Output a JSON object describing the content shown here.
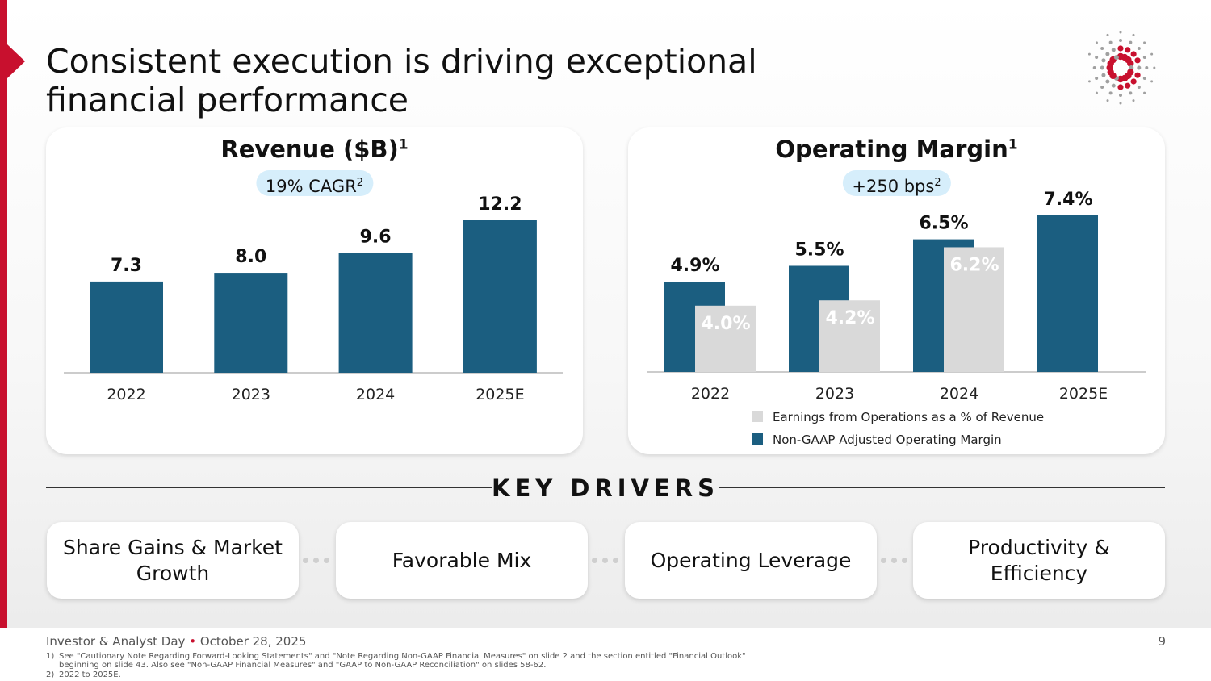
{
  "title": "Consistent execution is driving exceptional financial performance",
  "title_line1": "Consistent execution is driving exceptional",
  "title_line2": "financial performance",
  "colors": {
    "accent_red": "#c8102e",
    "bar_blue": "#1b5e80",
    "bar_gray": "#d9d9d9",
    "pill": "#d6eefb"
  },
  "logo": "red-gray-dot-burst-logo",
  "chart_data": [
    {
      "type": "bar",
      "title": "Revenue ($B)",
      "title_sup": "1",
      "badge": "19% CAGR",
      "badge_sup": "2",
      "categories": [
        "2022",
        "2023",
        "2024",
        "2025E"
      ],
      "values": [
        7.3,
        8.0,
        9.6,
        12.2
      ],
      "labels": [
        "7.3",
        "8.0",
        "9.6",
        "12.2"
      ],
      "ylim": [
        0,
        12.2
      ],
      "grid": false
    },
    {
      "type": "bar",
      "title": "Operating Margin",
      "title_sup": "1",
      "badge": "+250 bps",
      "badge_sup": "2",
      "categories": [
        "2022",
        "2023",
        "2024",
        "2025E"
      ],
      "ylim": [
        1.5,
        7.4
      ],
      "grid": false,
      "legend_placement": "bottom",
      "series": [
        {
          "name": "Non-GAAP Adjusted Operating Margin",
          "values": [
            4.9,
            5.5,
            6.5,
            7.4
          ],
          "labels": [
            "4.9%",
            "5.5%",
            "6.5%",
            "7.4%"
          ],
          "color": "#1b5e80"
        },
        {
          "name": "Earnings from Operations as a % of Revenue",
          "values": [
            4.0,
            4.2,
            6.2,
            null
          ],
          "labels": [
            "4.0%",
            "4.2%",
            "6.2%",
            ""
          ],
          "color": "#d9d9d9"
        }
      ]
    }
  ],
  "key_drivers": {
    "heading": "KEY DRIVERS",
    "items": [
      "Share Gains & Market Growth",
      "Favorable Mix",
      "Operating Leverage",
      "Productivity & Efficiency"
    ]
  },
  "footer": {
    "event": "Investor & Analyst Day",
    "bullet": "•",
    "date": "October 28, 2025",
    "page": "9",
    "notes": [
      {
        "num": "1)",
        "line1": "See \"Cautionary Note Regarding Forward-Looking Statements\" and \"Note Regarding Non-GAAP Financial Measures\" on slide 2 and the section entitled \"Financial Outlook\"",
        "line2": "beginning on slide 43. Also see \"Non-GAAP Financial Measures\" and \"GAAP to Non-GAAP Reconciliation\" on slides 58-62."
      },
      {
        "num": "2)",
        "line1": "2022 to 2025E."
      }
    ]
  }
}
